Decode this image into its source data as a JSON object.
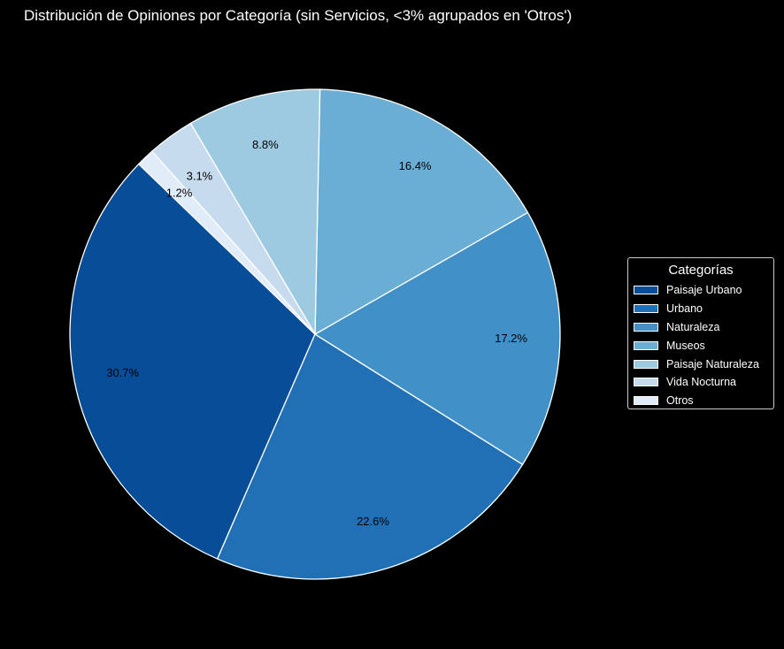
{
  "title": "Distribución de Opiniones por Categoría (sin Servicios, <3% agrupados en 'Otros')",
  "legend": {
    "title": "Categorías",
    "placement": "center-right"
  },
  "chart_data": {
    "type": "pie",
    "title": "Distribución de Opiniones por Categoría (sin Servicios, <3% agrupados en 'Otros')",
    "start_angle_deg": 136,
    "direction": "counterclockwise",
    "edge_color": "#ffffff",
    "slices": [
      {
        "label": "Paisaje Urbano",
        "value": 30.7,
        "value_label": "30.7%",
        "color": "#084d97"
      },
      {
        "label": "Urbano",
        "value": 22.6,
        "value_label": "22.6%",
        "color": "#2170b5"
      },
      {
        "label": "Naturaleza",
        "value": 17.2,
        "value_label": "17.2%",
        "color": "#4190c8"
      },
      {
        "label": "Museos",
        "value": 16.4,
        "value_label": "16.4%",
        "color": "#6aaed6"
      },
      {
        "label": "Paisaje Naturaleza",
        "value": 8.8,
        "value_label": "8.8%",
        "color": "#9dcae1"
      },
      {
        "label": "Vida Nocturna",
        "value": 3.1,
        "value_label": "3.1%",
        "color": "#c7dbef"
      },
      {
        "label": "Otros",
        "value": 1.2,
        "value_label": "1.2%",
        "color": "#e0ecf8"
      }
    ]
  }
}
